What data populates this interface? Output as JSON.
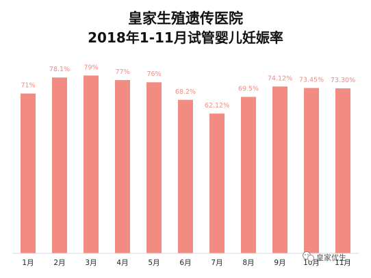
{
  "chart_data": {
    "type": "bar",
    "title": "皇家生殖遗传医院",
    "subtitle": "2018年1-11月试管婴儿妊娠率",
    "categories": [
      "1月",
      "2月",
      "3月",
      "4月",
      "5月",
      "6月",
      "7月",
      "8月",
      "9月",
      "10月",
      "11月"
    ],
    "values": [
      71,
      78.1,
      79,
      77,
      76,
      68.2,
      62.12,
      69.5,
      74.12,
      73.45,
      73.3
    ],
    "data_labels": [
      "71%",
      "78.1%",
      "79%",
      "77%",
      "76%",
      "68.2%",
      "62.12%",
      "69.5%",
      "74.12%",
      "73.45%",
      "73.30%"
    ],
    "xlabel": "",
    "ylabel": "",
    "ylim": [
      0,
      80
    ],
    "grid": false,
    "bar_color": "#f28b82",
    "label_color": "#f28b82"
  },
  "watermark": {
    "text": "皇家优生",
    "icon": "wechat-icon"
  }
}
